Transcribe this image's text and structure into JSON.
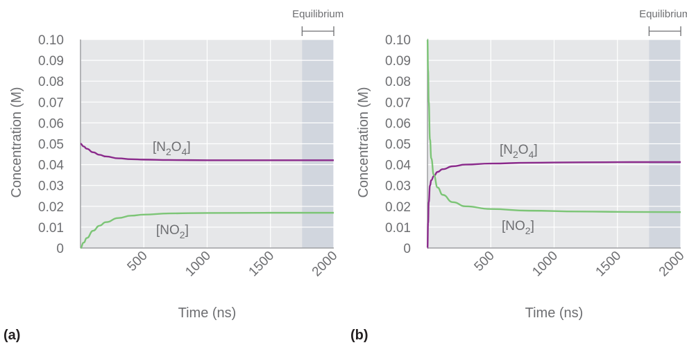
{
  "colors": {
    "plot_bg": "#e6e7e9",
    "equilibrium_bg": "#d1d6de",
    "grid": "#ffffff",
    "n2o4": "#8a2a8b",
    "no2": "#7cc576",
    "text": "#6d6e71"
  },
  "chart_data": [
    {
      "type": "line",
      "panel_label": "(a)",
      "xlabel": "Time (ns)",
      "ylabel": "Concentration (M)",
      "xlim": [
        0,
        2000
      ],
      "ylim": [
        0,
        0.1
      ],
      "x_ticks": [
        "500",
        "1000",
        "1500",
        "2000"
      ],
      "y_ticks": [
        "0",
        "0.01",
        "0.02",
        "0.03",
        "0.04",
        "0.05",
        "0.06",
        "0.07",
        "0.08",
        "0.09",
        "0.10"
      ],
      "equilibrium_label": "Equilibrium",
      "equilibrium_region": [
        1750,
        2000
      ],
      "series": [
        {
          "name": "[N2O4]",
          "label_main": "[N",
          "label_sub1": "2",
          "label_mid": "O",
          "label_sub2": "4",
          "label_end": "]",
          "x": [
            0,
            25,
            50,
            100,
            150,
            200,
            300,
            400,
            500,
            700,
            1000,
            1500,
            2000
          ],
          "y": [
            0.05,
            0.0487,
            0.0476,
            0.0459,
            0.0447,
            0.0439,
            0.043,
            0.0426,
            0.0424,
            0.0422,
            0.0421,
            0.0421,
            0.0421
          ]
        },
        {
          "name": "[NO2]",
          "label_main": "[NO",
          "label_sub1": "2",
          "label_end": "]",
          "x": [
            0,
            25,
            50,
            100,
            150,
            200,
            300,
            400,
            500,
            700,
            1000,
            1500,
            2000
          ],
          "y": [
            0.0,
            0.0026,
            0.0048,
            0.0083,
            0.0107,
            0.0124,
            0.0144,
            0.0155,
            0.016,
            0.0166,
            0.0168,
            0.0169,
            0.0169
          ]
        }
      ]
    },
    {
      "type": "line",
      "panel_label": "(b)",
      "xlabel": "Time (ns)",
      "ylabel": "Concentration (M)",
      "xlim": [
        0,
        2000
      ],
      "ylim": [
        0,
        0.1
      ],
      "x_ticks": [
        "500",
        "1000",
        "1500",
        "2000"
      ],
      "y_ticks": [
        "0",
        "0.01",
        "0.02",
        "0.03",
        "0.04",
        "0.05",
        "0.06",
        "0.07",
        "0.08",
        "0.09",
        "0.10"
      ],
      "equilibrium_label": "Equilibrium",
      "equilibrium_region": [
        1750,
        2000
      ],
      "series": [
        {
          "name": "[N2O4]",
          "label_main": "[N",
          "label_sub1": "2",
          "label_mid": "O",
          "label_sub2": "4",
          "label_end": "]",
          "x": [
            0,
            5,
            10,
            20,
            30,
            50,
            80,
            120,
            200,
            300,
            500,
            800,
            1200,
            1600,
            2000
          ],
          "y": [
            0.0,
            0.012,
            0.022,
            0.03,
            0.0325,
            0.0345,
            0.0365,
            0.0378,
            0.0392,
            0.04,
            0.0405,
            0.0409,
            0.0411,
            0.0412,
            0.0412
          ]
        },
        {
          "name": "[NO2]",
          "label_main": "[NO",
          "label_sub1": "2",
          "label_end": "]",
          "x": [
            0,
            5,
            10,
            20,
            30,
            50,
            80,
            120,
            200,
            300,
            500,
            800,
            1200,
            1600,
            2000
          ],
          "y": [
            0.1,
            0.085,
            0.07,
            0.052,
            0.043,
            0.035,
            0.029,
            0.0255,
            0.022,
            0.02,
            0.0187,
            0.0179,
            0.0175,
            0.0173,
            0.0172
          ]
        }
      ]
    }
  ]
}
